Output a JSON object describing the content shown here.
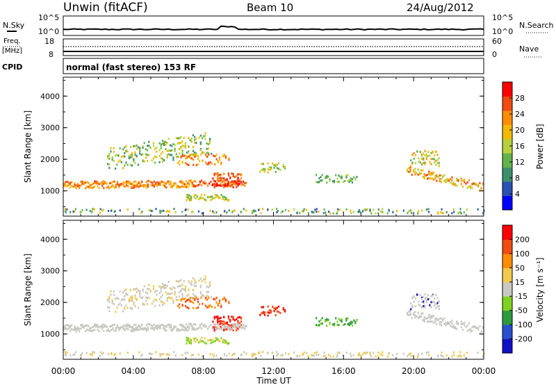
{
  "header": {
    "station": "Unwin (fitACF)",
    "beam": "Beam 10",
    "date": "24/Aug/2012"
  },
  "strips": {
    "nsky": {
      "label": "N.Sky",
      "left_ticks": [
        "10^5",
        "10^0"
      ],
      "right_ticks": [
        "10^5",
        "10^0"
      ],
      "right_label": "N.Search"
    },
    "freq": {
      "label_line1": "Freq.",
      "label_line2": "[MHz]",
      "left_ticks": [
        "18",
        "8"
      ],
      "right_ticks": [
        "60",
        "0"
      ],
      "right_label": "Nave"
    },
    "cpid": {
      "label": "CPID",
      "text": "normal (fast stereo) 153 RF"
    }
  },
  "chart_data": [
    {
      "type": "heatmap",
      "name": "power",
      "ylabel": "Slant Range [km]",
      "xlabel": "",
      "yticks": [
        "1000",
        "2000",
        "3000",
        "4000"
      ],
      "ylim": [
        200,
        4600
      ],
      "xlim_hours": [
        0,
        24
      ],
      "colorbar": {
        "label": "Power [dB]",
        "ticks": [
          "4",
          "8",
          "12",
          "16",
          "20",
          "24",
          "28"
        ],
        "range": [
          0,
          32
        ],
        "colors": [
          "#0000ff",
          "#2a52b4",
          "#3d8f6b",
          "#63b34b",
          "#b8d03c",
          "#f4b800",
          "#ff8c00",
          "#f24a10",
          "#ff0000"
        ]
      }
    },
    {
      "type": "heatmap",
      "name": "velocity",
      "ylabel": "Slant Range [km]",
      "xlabel": "Time UT",
      "xticks": [
        "00:00",
        "04:00",
        "08:00",
        "12:00",
        "16:00",
        "20:00",
        "00:00"
      ],
      "yticks": [
        "1000",
        "2000",
        "3000",
        "4000"
      ],
      "ylim": [
        200,
        4600
      ],
      "xlim_hours": [
        0,
        24
      ],
      "colorbar": {
        "label": "Velocity [m s⁻¹]",
        "ticks": [
          "200",
          "100",
          "50",
          "15",
          "-15",
          "-50",
          "-100",
          "-200"
        ],
        "colors": [
          "#1010c8",
          "#2a50d0",
          "#2e9a3c",
          "#7ed321",
          "#c8c8c0",
          "#f2c94c",
          "#ff8c00",
          "#f24a10",
          "#ff0000"
        ]
      }
    }
  ]
}
